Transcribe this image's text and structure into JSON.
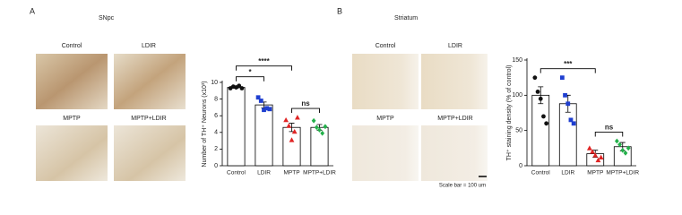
{
  "panels": [
    {
      "label": "A",
      "title": "SNpc",
      "image_labels": [
        "Control",
        "LDIR",
        "MPTP",
        "MPTP+LDIR"
      ]
    },
    {
      "label": "B",
      "title": "Striatum",
      "image_labels": [
        "Control",
        "LDIR",
        "MPTP",
        "MPTP+LDIR"
      ],
      "scale_bar": "Scale bar = 100 um"
    }
  ],
  "chart_data": [
    {
      "type": "bar",
      "y_label": "Number of TH⁺ Neurons (x10³)",
      "categories": [
        "Control",
        "LDIR",
        "MPTP",
        "MPTP+LDIR"
      ],
      "values": [
        9.4,
        7.3,
        4.6,
        4.6
      ],
      "errors": [
        0.1,
        0.35,
        0.5,
        0.35
      ],
      "points": [
        [
          9.3,
          9.5,
          9.4,
          9.6,
          9.3
        ],
        [
          8.2,
          7.8,
          6.7,
          6.9,
          6.8
        ],
        [
          5.5,
          4.8,
          3.1,
          4.1,
          5.8
        ],
        [
          5.4,
          4.6,
          4.3,
          3.9,
          4.7
        ]
      ],
      "colors": [
        "#111111",
        "#1f3fd0",
        "#e02424",
        "#23b04a"
      ],
      "markers": [
        "circle",
        "square",
        "triangle",
        "diamond"
      ],
      "ylim": [
        0,
        10
      ],
      "yticks": [
        0,
        2,
        4,
        6,
        8,
        10
      ],
      "annotations": [
        {
          "text": "*",
          "between": [
            0,
            1
          ]
        },
        {
          "text": "****",
          "between": [
            0,
            2
          ]
        },
        {
          "text": "ns",
          "between": [
            2,
            3
          ]
        }
      ]
    },
    {
      "type": "bar",
      "y_label": "TH⁺ staining density (% of control)",
      "categories": [
        "Control",
        "LDIR",
        "MPTP",
        "MPTP+LDIR"
      ],
      "values": [
        100,
        88,
        17,
        27
      ],
      "errors": [
        12,
        12,
        5,
        6
      ],
      "points": [
        [
          125,
          105,
          95,
          70,
          60
        ],
        [
          125,
          100,
          88,
          65,
          60
        ],
        [
          25,
          20,
          15,
          8,
          12
        ],
        [
          35,
          30,
          22,
          18,
          25
        ]
      ],
      "colors": [
        "#111111",
        "#1f3fd0",
        "#e02424",
        "#23b04a"
      ],
      "markers": [
        "circle",
        "square",
        "triangle",
        "diamond"
      ],
      "ylim": [
        0,
        150
      ],
      "yticks": [
        0,
        50,
        100,
        150
      ],
      "annotations": [
        {
          "text": "***",
          "between": [
            0,
            2
          ]
        },
        {
          "text": "ns",
          "between": [
            2,
            3
          ]
        }
      ]
    }
  ]
}
